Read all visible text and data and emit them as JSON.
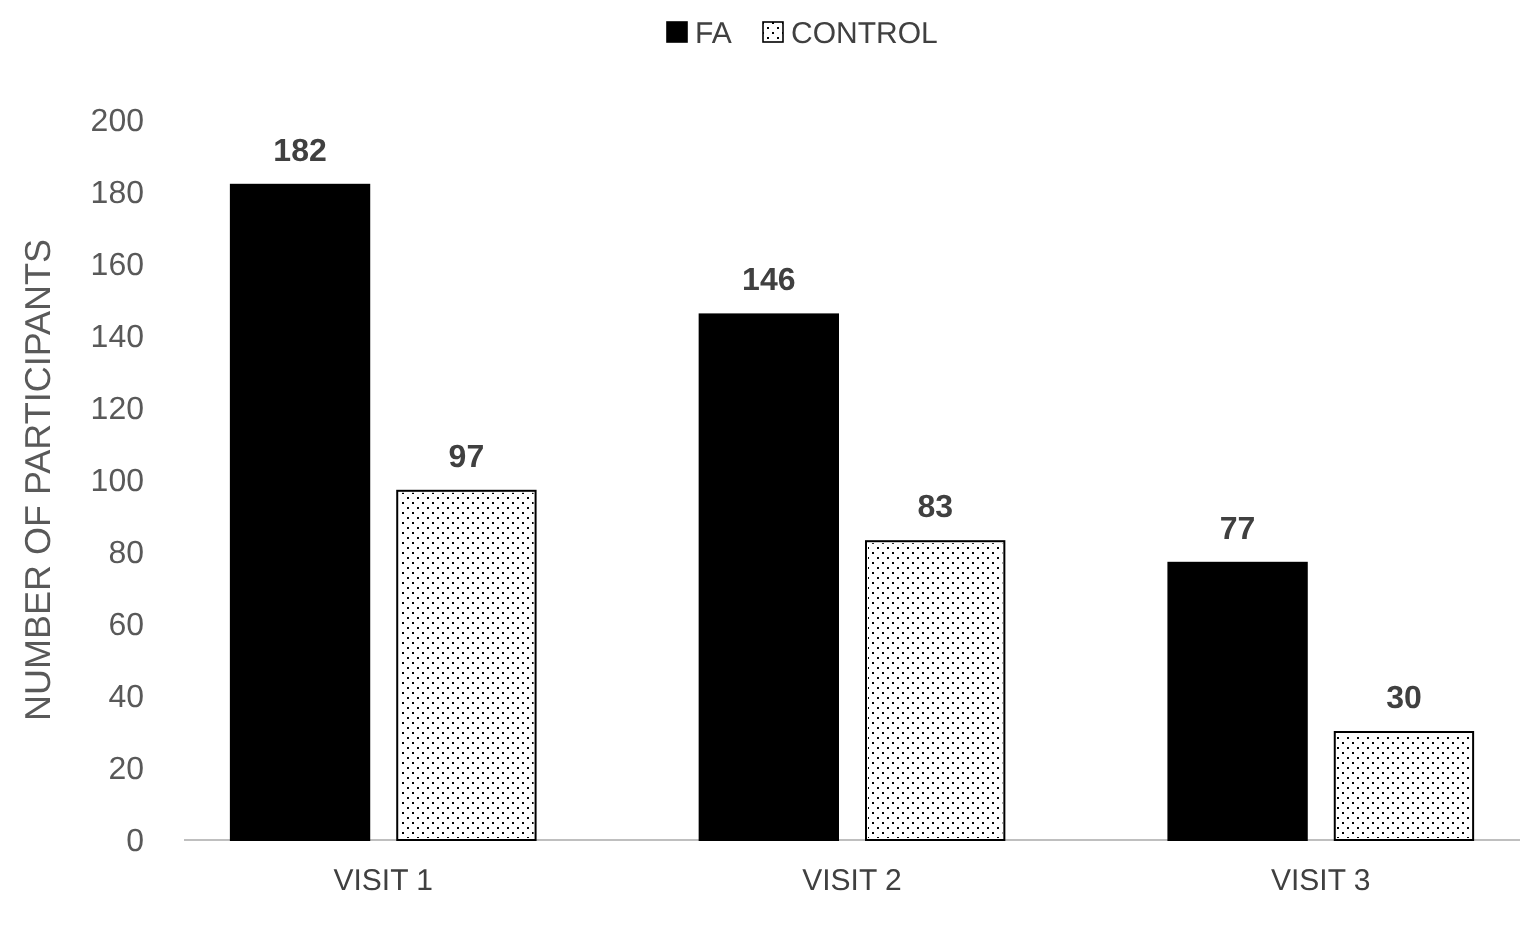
{
  "chart_data": {
    "type": "bar",
    "ylabel": "NUMBER OF PARTICIPANTS",
    "categories": [
      "VISIT 1",
      "VISIT 2",
      "VISIT 3"
    ],
    "series": [
      {
        "name": "FA",
        "color": "#000000",
        "values": [
          182,
          146,
          77
        ]
      },
      {
        "name": "CONTROL",
        "color": "#ffffff",
        "values": [
          97,
          83,
          30
        ]
      }
    ],
    "ylim": [
      0,
      200
    ],
    "yticks": [
      0,
      20,
      40,
      60,
      80,
      100,
      120,
      140,
      160,
      180,
      200
    ],
    "grid": false,
    "legend": "top",
    "data_labels": true
  }
}
